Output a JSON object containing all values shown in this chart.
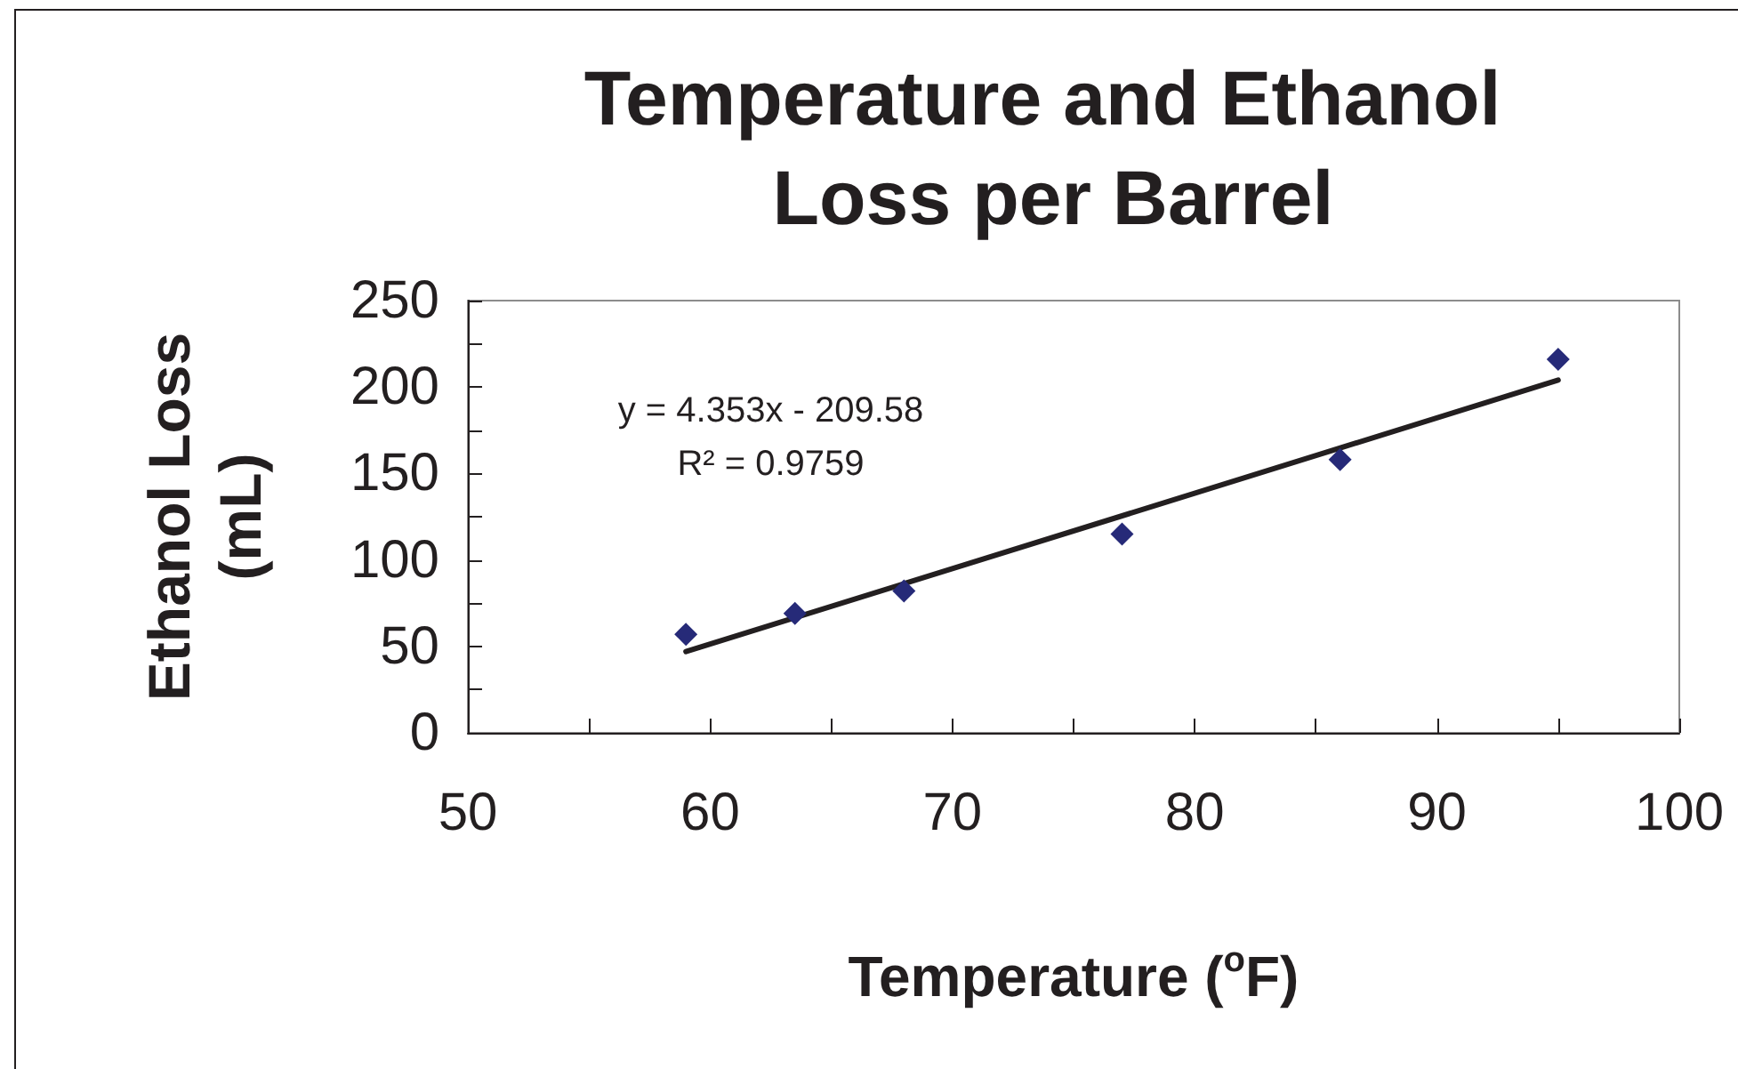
{
  "chart_data": {
    "type": "scatter",
    "title": "Temperature and Ethanol Loss per Barrel",
    "xlabel": "Temperature ($^{o}$F)",
    "ylabel": "Ethanol Loss (mL)",
    "annotations": [
      "y = 4.353x - 209.58",
      "R² = 0.9759"
    ],
    "series": [
      {
        "type": "scatter",
        "color": "#262a78",
        "x": [
          59,
          63.5,
          68,
          77,
          86,
          95
        ],
        "values": [
          57,
          69,
          82,
          115,
          158,
          216
        ]
      },
      {
        "type": "line",
        "color": "#231f20",
        "marker": "none",
        "x": [
          59,
          95
        ],
        "values": [
          47,
          204
        ]
      }
    ],
    "xlim": [
      50,
      100
    ],
    "xticks": [
      50,
      {
        "value": 55,
        "label": null
      },
      60,
      {
        "value": 65,
        "label": null
      },
      70,
      {
        "value": 75,
        "label": null
      },
      80,
      {
        "value": 85,
        "label": null
      },
      90,
      {
        "value": 95,
        "label": null
      },
      100
    ],
    "ylim": [
      0,
      250
    ],
    "yticks": [
      0,
      {
        "value": 25,
        "label": null
      },
      50,
      {
        "value": 75,
        "label": null
      },
      100,
      {
        "value": 125,
        "label": null
      },
      150,
      {
        "value": 175,
        "label": null
      },
      200,
      {
        "value": 225,
        "label": null
      },
      250
    ],
    "grid": false,
    "marker": "diamond"
  }
}
